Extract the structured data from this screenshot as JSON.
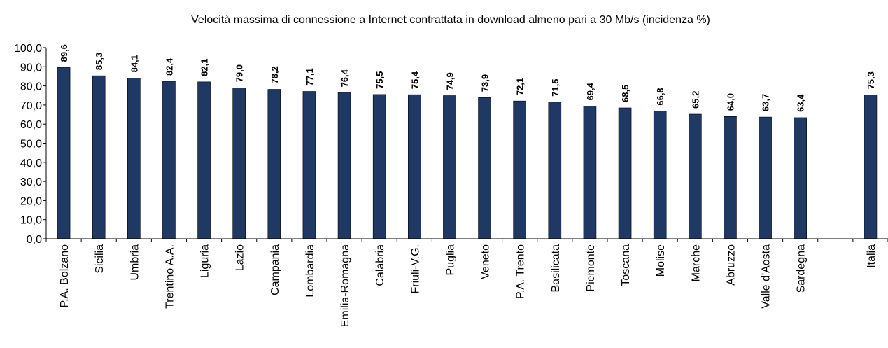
{
  "chart_data": {
    "type": "bar",
    "title": "Velocità massima di connessione a Internet contrattata in download almeno pari a 30 Mb/s (incidenza %)",
    "xlabel": "",
    "ylabel": "",
    "ylim": [
      0,
      100
    ],
    "yticks": [
      "0,0",
      "10,0",
      "20,0",
      "30,0",
      "40,0",
      "50,0",
      "60,0",
      "70,0",
      "80,0",
      "90,0",
      "100,0"
    ],
    "categories": [
      "P.A. Bolzano",
      "Sicilia",
      "Umbria",
      "Trentino A.A.",
      "Liguria",
      "Lazio",
      "Campania",
      "Lombardia",
      "Emilia-Romagna",
      "Calabria",
      "Friuli-V.G.",
      "Puglia",
      "Veneto",
      "P.A. Trento",
      "Basilicata",
      "Piemonte",
      "Toscana",
      "Molise",
      "Marche",
      "Abruzzo",
      "Valle d'Aosta",
      "Sardegna",
      "",
      "Italia"
    ],
    "values": [
      89.6,
      85.3,
      84.1,
      82.4,
      82.1,
      79.0,
      78.2,
      77.1,
      76.4,
      75.5,
      75.4,
      74.9,
      73.9,
      72.1,
      71.5,
      69.4,
      68.5,
      66.8,
      65.2,
      64.0,
      63.7,
      63.4,
      null,
      75.3
    ],
    "data_labels": [
      "89,6",
      "85,3",
      "84,1",
      "82,4",
      "82,1",
      "79,0",
      "78,2",
      "77,1",
      "76,4",
      "75,5",
      "75,4",
      "74,9",
      "73,9",
      "72,1",
      "71,5",
      "69,4",
      "68,5",
      "66,8",
      "65,2",
      "64,0",
      "63,7",
      "63,4",
      "",
      "75,3"
    ],
    "bar_color": "#1f3864",
    "grid": false,
    "legend": false
  }
}
